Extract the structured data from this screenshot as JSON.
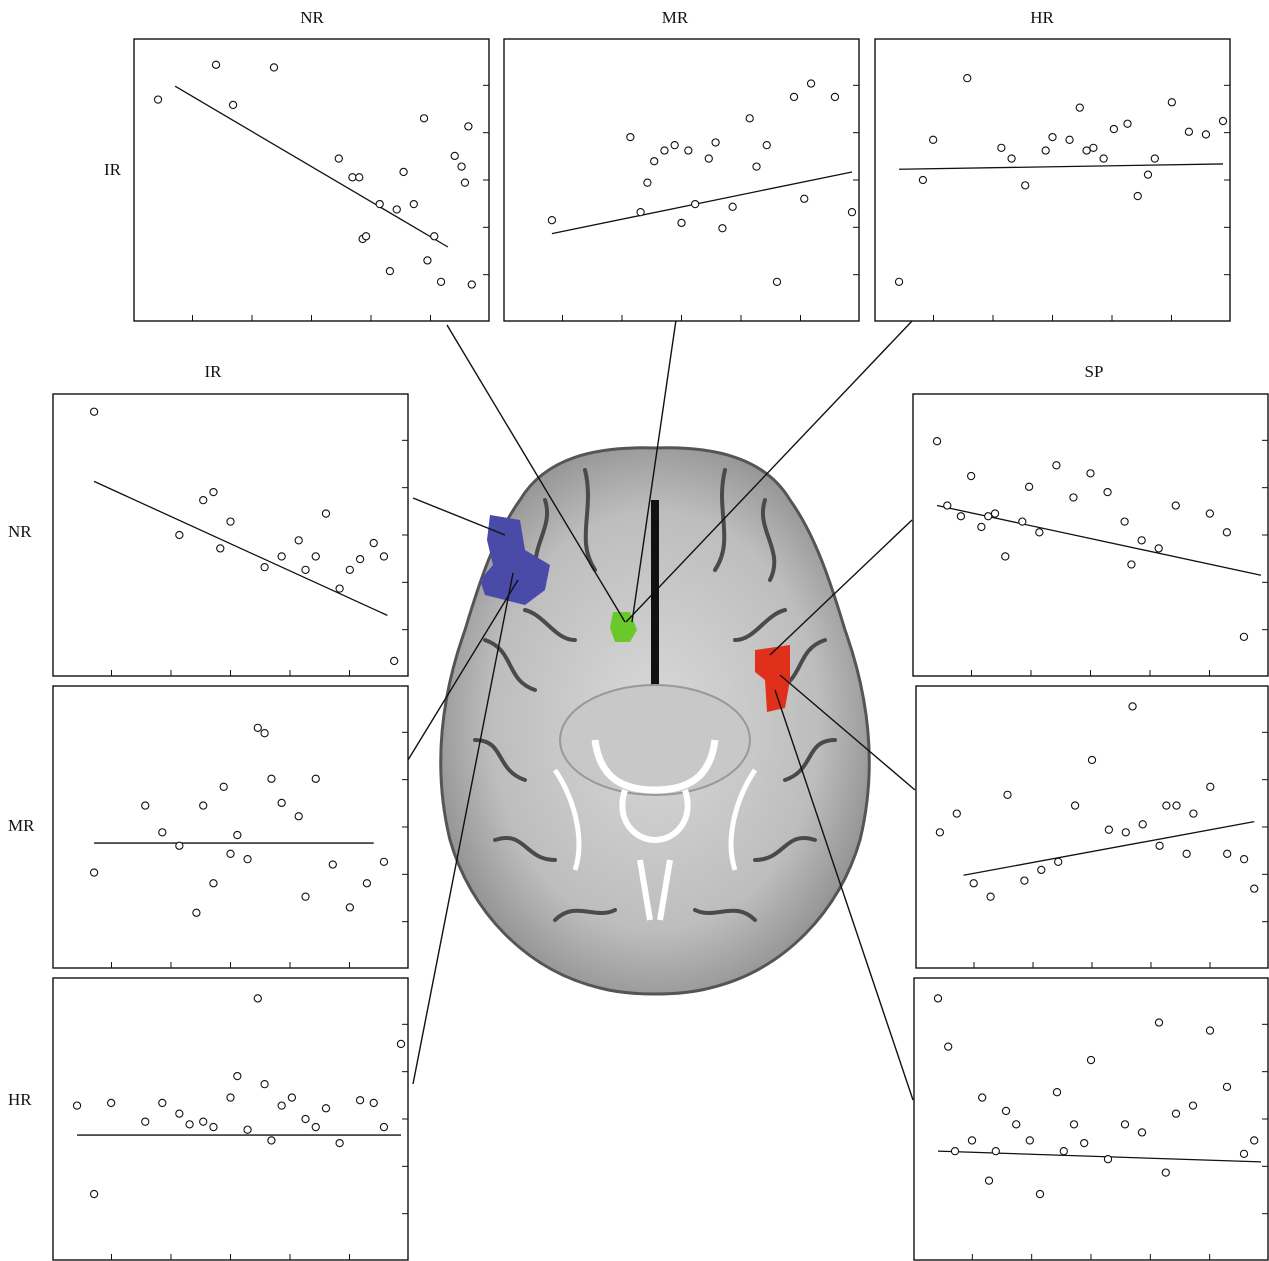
{
  "column_labels": {
    "top_nr": "NR",
    "top_mr": "MR",
    "top_hr": "HR",
    "left_ir": "IR",
    "right_sp": "SP"
  },
  "row_labels": {
    "top_ir": "IR",
    "left_nr": "NR",
    "left_mr": "MR",
    "left_hr": "HR"
  },
  "colors": {
    "nr_region": "#4a4aa8",
    "ir_region": "#4a4aa8",
    "mr_region": "#6ac82a",
    "sp_region": "#e0301c"
  },
  "chart_data": [
    {
      "id": "ir-nr",
      "type": "scatter",
      "xlabel": "NR",
      "ylabel": "IR",
      "x": [
        0.05,
        0.22,
        0.27,
        0.39,
        0.58,
        0.62,
        0.64,
        0.65,
        0.66,
        0.7,
        0.73,
        0.75,
        0.77,
        0.8,
        0.83,
        0.84,
        0.86,
        0.88,
        0.92,
        0.94,
        0.95,
        0.96,
        0.97
      ],
      "y": [
        0.8,
        0.93,
        0.78,
        0.92,
        0.58,
        0.51,
        0.51,
        0.28,
        0.29,
        0.41,
        0.16,
        0.39,
        0.53,
        0.41,
        0.73,
        0.2,
        0.29,
        0.12,
        0.59,
        0.55,
        0.49,
        0.7,
        0.11
      ],
      "fit": [
        [
          0.1,
          0.85
        ],
        [
          0.9,
          0.25
        ]
      ]
    },
    {
      "id": "ir-mr",
      "type": "scatter",
      "xlabel": "MR",
      "ylabel": "IR",
      "x": [
        0.12,
        0.35,
        0.38,
        0.4,
        0.42,
        0.45,
        0.48,
        0.5,
        0.52,
        0.54,
        0.58,
        0.6,
        0.62,
        0.65,
        0.7,
        0.72,
        0.75,
        0.78,
        0.83,
        0.86,
        0.88,
        0.95,
        1.0
      ],
      "y": [
        0.35,
        0.66,
        0.38,
        0.49,
        0.57,
        0.61,
        0.63,
        0.34,
        0.61,
        0.41,
        0.58,
        0.64,
        0.32,
        0.4,
        0.73,
        0.55,
        0.63,
        0.12,
        0.81,
        0.43,
        0.86,
        0.81,
        0.38
      ],
      "fit": [
        [
          0.12,
          0.3
        ],
        [
          1.0,
          0.53
        ]
      ]
    },
    {
      "id": "ir-hr",
      "type": "scatter",
      "xlabel": "HR",
      "ylabel": "IR",
      "x": [
        0.05,
        0.12,
        0.15,
        0.25,
        0.35,
        0.38,
        0.42,
        0.48,
        0.5,
        0.55,
        0.58,
        0.6,
        0.62,
        0.65,
        0.68,
        0.72,
        0.75,
        0.78,
        0.8,
        0.85,
        0.9,
        0.95,
        1.0
      ],
      "y": [
        0.12,
        0.5,
        0.65,
        0.88,
        0.62,
        0.58,
        0.48,
        0.61,
        0.66,
        0.65,
        0.77,
        0.61,
        0.62,
        0.58,
        0.69,
        0.71,
        0.44,
        0.52,
        0.58,
        0.79,
        0.68,
        0.67,
        0.72
      ],
      "fit": [
        [
          0.05,
          0.54
        ],
        [
          1.0,
          0.56
        ]
      ]
    },
    {
      "id": "nr-ir",
      "type": "scatter",
      "xlabel": "IR",
      "ylabel": "NR",
      "x": [
        0.1,
        0.35,
        0.42,
        0.45,
        0.47,
        0.5,
        0.6,
        0.65,
        0.7,
        0.72,
        0.75,
        0.78,
        0.82,
        0.85,
        0.88,
        0.92,
        0.95,
        0.98
      ],
      "y": [
        0.96,
        0.5,
        0.63,
        0.66,
        0.45,
        0.55,
        0.38,
        0.42,
        0.48,
        0.37,
        0.42,
        0.58,
        0.3,
        0.37,
        0.41,
        0.47,
        0.42,
        0.03
      ],
      "fit": [
        [
          0.1,
          0.7
        ],
        [
          0.96,
          0.2
        ]
      ]
    },
    {
      "id": "mr-ir",
      "type": "scatter",
      "xlabel": "IR",
      "ylabel": "MR",
      "x": [
        0.1,
        0.25,
        0.3,
        0.35,
        0.4,
        0.42,
        0.45,
        0.48,
        0.5,
        0.52,
        0.55,
        0.58,
        0.6,
        0.62,
        0.65,
        0.7,
        0.72,
        0.75,
        0.8,
        0.85,
        0.9,
        0.95
      ],
      "y": [
        0.33,
        0.58,
        0.48,
        0.43,
        0.18,
        0.58,
        0.29,
        0.65,
        0.4,
        0.47,
        0.38,
        0.87,
        0.85,
        0.68,
        0.59,
        0.54,
        0.24,
        0.68,
        0.36,
        0.2,
        0.29,
        0.37
      ],
      "fit": [
        [
          0.1,
          0.44
        ],
        [
          0.92,
          0.44
        ]
      ]
    },
    {
      "id": "hr-ir",
      "type": "scatter",
      "xlabel": "IR",
      "ylabel": "HR",
      "x": [
        0.05,
        0.1,
        0.15,
        0.25,
        0.3,
        0.35,
        0.38,
        0.42,
        0.45,
        0.5,
        0.52,
        0.55,
        0.58,
        0.6,
        0.62,
        0.65,
        0.68,
        0.72,
        0.75,
        0.78,
        0.82,
        0.88,
        0.92,
        0.95,
        1.0
      ],
      "y": [
        0.55,
        0.22,
        0.56,
        0.49,
        0.56,
        0.52,
        0.48,
        0.49,
        0.47,
        0.58,
        0.66,
        0.46,
        0.95,
        0.63,
        0.42,
        0.55,
        0.58,
        0.5,
        0.47,
        0.54,
        0.41,
        0.57,
        0.56,
        0.47,
        0.78
      ],
      "fit": [
        [
          0.05,
          0.44
        ],
        [
          1.0,
          0.44
        ]
      ]
    },
    {
      "id": "sp-ir",
      "type": "scatter",
      "xlabel": "IR",
      "ylabel": "SP",
      "x": [
        0.05,
        0.08,
        0.12,
        0.15,
        0.18,
        0.2,
        0.22,
        0.25,
        0.3,
        0.32,
        0.35,
        0.4,
        0.45,
        0.5,
        0.55,
        0.6,
        0.62,
        0.65,
        0.7,
        0.75,
        0.85,
        0.9,
        0.95
      ],
      "y": [
        0.85,
        0.61,
        0.57,
        0.72,
        0.53,
        0.57,
        0.58,
        0.42,
        0.55,
        0.68,
        0.51,
        0.76,
        0.64,
        0.73,
        0.66,
        0.55,
        0.39,
        0.48,
        0.45,
        0.61,
        0.58,
        0.51,
        0.12
      ],
      "fit": [
        [
          0.05,
          0.61
        ],
        [
          1.0,
          0.35
        ]
      ]
    },
    {
      "id": "sp-mr",
      "type": "scatter",
      "xlabel": "MR",
      "ylabel": "SP",
      "x": [
        0.05,
        0.1,
        0.15,
        0.2,
        0.25,
        0.3,
        0.35,
        0.4,
        0.45,
        0.5,
        0.55,
        0.6,
        0.62,
        0.65,
        0.7,
        0.72,
        0.75,
        0.78,
        0.8,
        0.85,
        0.9,
        0.95,
        0.98
      ],
      "y": [
        0.48,
        0.55,
        0.29,
        0.24,
        0.62,
        0.3,
        0.34,
        0.37,
        0.58,
        0.75,
        0.49,
        0.48,
        0.95,
        0.51,
        0.43,
        0.58,
        0.58,
        0.4,
        0.55,
        0.65,
        0.4,
        0.38,
        0.27
      ],
      "fit": [
        [
          0.12,
          0.32
        ],
        [
          0.98,
          0.52
        ]
      ]
    },
    {
      "id": "sp-hr",
      "type": "scatter",
      "xlabel": "HR",
      "ylabel": "SP",
      "x": [
        0.05,
        0.08,
        0.1,
        0.15,
        0.18,
        0.2,
        0.22,
        0.25,
        0.28,
        0.32,
        0.35,
        0.4,
        0.42,
        0.45,
        0.48,
        0.5,
        0.55,
        0.6,
        0.65,
        0.7,
        0.72,
        0.75,
        0.8,
        0.85,
        0.9,
        0.95,
        0.98
      ],
      "y": [
        0.95,
        0.77,
        0.38,
        0.42,
        0.58,
        0.27,
        0.38,
        0.53,
        0.48,
        0.42,
        0.22,
        0.6,
        0.38,
        0.48,
        0.41,
        0.72,
        0.35,
        0.48,
        0.45,
        0.86,
        0.3,
        0.52,
        0.55,
        0.83,
        0.62,
        0.37,
        0.42
      ],
      "fit": [
        [
          0.05,
          0.38
        ],
        [
          1.0,
          0.34
        ]
      ]
    }
  ]
}
